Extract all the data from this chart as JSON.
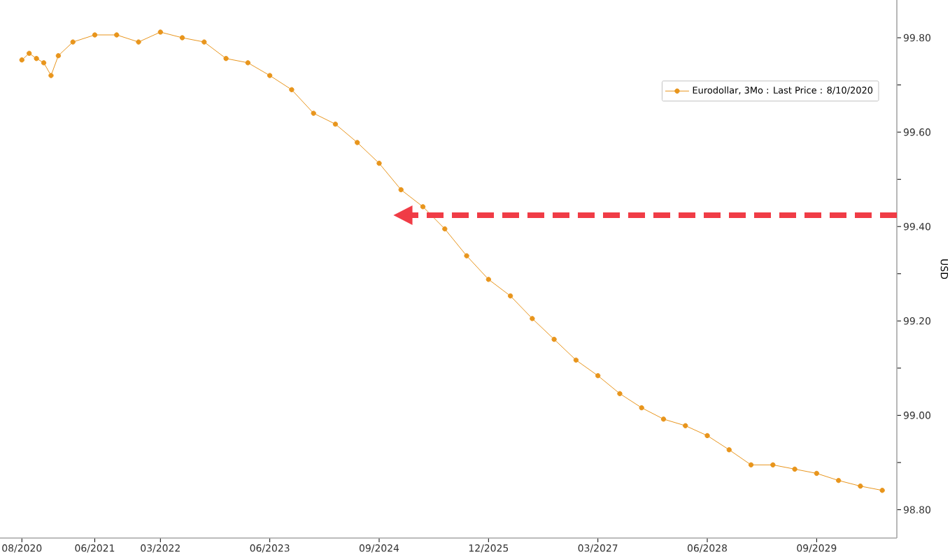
{
  "chart_data": {
    "type": "line",
    "ylabel": "USD",
    "x": [
      "2020-08",
      "2020-09",
      "2020-10",
      "2020-11",
      "2020-12",
      "2021-01",
      "2021-03",
      "2021-06",
      "2021-09",
      "2021-12",
      "2022-03",
      "2022-06",
      "2022-09",
      "2022-12",
      "2023-03",
      "2023-06",
      "2023-09",
      "2023-12",
      "2024-03",
      "2024-06",
      "2024-09",
      "2024-12",
      "2025-03",
      "2025-06",
      "2025-09",
      "2025-12",
      "2026-03",
      "2026-06",
      "2026-09",
      "2026-12",
      "2027-03",
      "2027-06",
      "2027-09",
      "2027-12",
      "2028-03",
      "2028-06",
      "2028-09",
      "2028-12",
      "2029-03",
      "2029-06",
      "2029-09",
      "2029-12",
      "2030-03",
      "2030-06"
    ],
    "series": [
      {
        "name": "Eurodollar, 3Mo : Last Price : 8/10/2020",
        "color": "#e8951c",
        "values": [
          99.753,
          99.767,
          99.756,
          99.747,
          99.72,
          99.762,
          99.791,
          99.806,
          99.806,
          99.791,
          99.812,
          99.8,
          99.791,
          99.756,
          99.747,
          99.72,
          99.69,
          99.64,
          99.617,
          99.578,
          99.534,
          99.478,
          99.442,
          99.395,
          99.338,
          99.288,
          99.253,
          99.205,
          99.161,
          99.117,
          99.084,
          99.046,
          99.016,
          98.992,
          98.978,
          98.957,
          98.927,
          98.895,
          98.895,
          98.886,
          98.877,
          98.862,
          98.85,
          98.841
        ]
      }
    ],
    "xlim": [
      "2020-05",
      "2030-08"
    ],
    "xticks": [
      {
        "value": "2020-08",
        "label": "08/2020"
      },
      {
        "value": "2021-06",
        "label": "06/2021"
      },
      {
        "value": "2022-03",
        "label": "03/2022"
      },
      {
        "value": "2023-06",
        "label": "06/2023"
      },
      {
        "value": "2024-09",
        "label": "09/2024"
      },
      {
        "value": "2025-12",
        "label": "12/2025"
      },
      {
        "value": "2027-03",
        "label": "03/2027"
      },
      {
        "value": "2028-06",
        "label": "06/2028"
      },
      {
        "value": "2029-09",
        "label": "09/2029"
      }
    ],
    "ylim": [
      98.74,
      99.88
    ],
    "yticks": [
      {
        "value": 98.8,
        "label": "98.80"
      },
      {
        "value": 98.9,
        "label": null
      },
      {
        "value": 99.0,
        "label": "99.00"
      },
      {
        "value": 99.1,
        "label": null
      },
      {
        "value": 99.2,
        "label": "99.20"
      },
      {
        "value": 99.3,
        "label": null
      },
      {
        "value": 99.4,
        "label": "99.40"
      },
      {
        "value": 99.5,
        "label": null
      },
      {
        "value": 99.6,
        "label": "99.60"
      },
      {
        "value": 99.7,
        "label": null
      },
      {
        "value": 99.8,
        "label": "99.80"
      }
    ],
    "grid": false,
    "legend": "top right",
    "marker": "circle",
    "line_style": "solid"
  }
}
